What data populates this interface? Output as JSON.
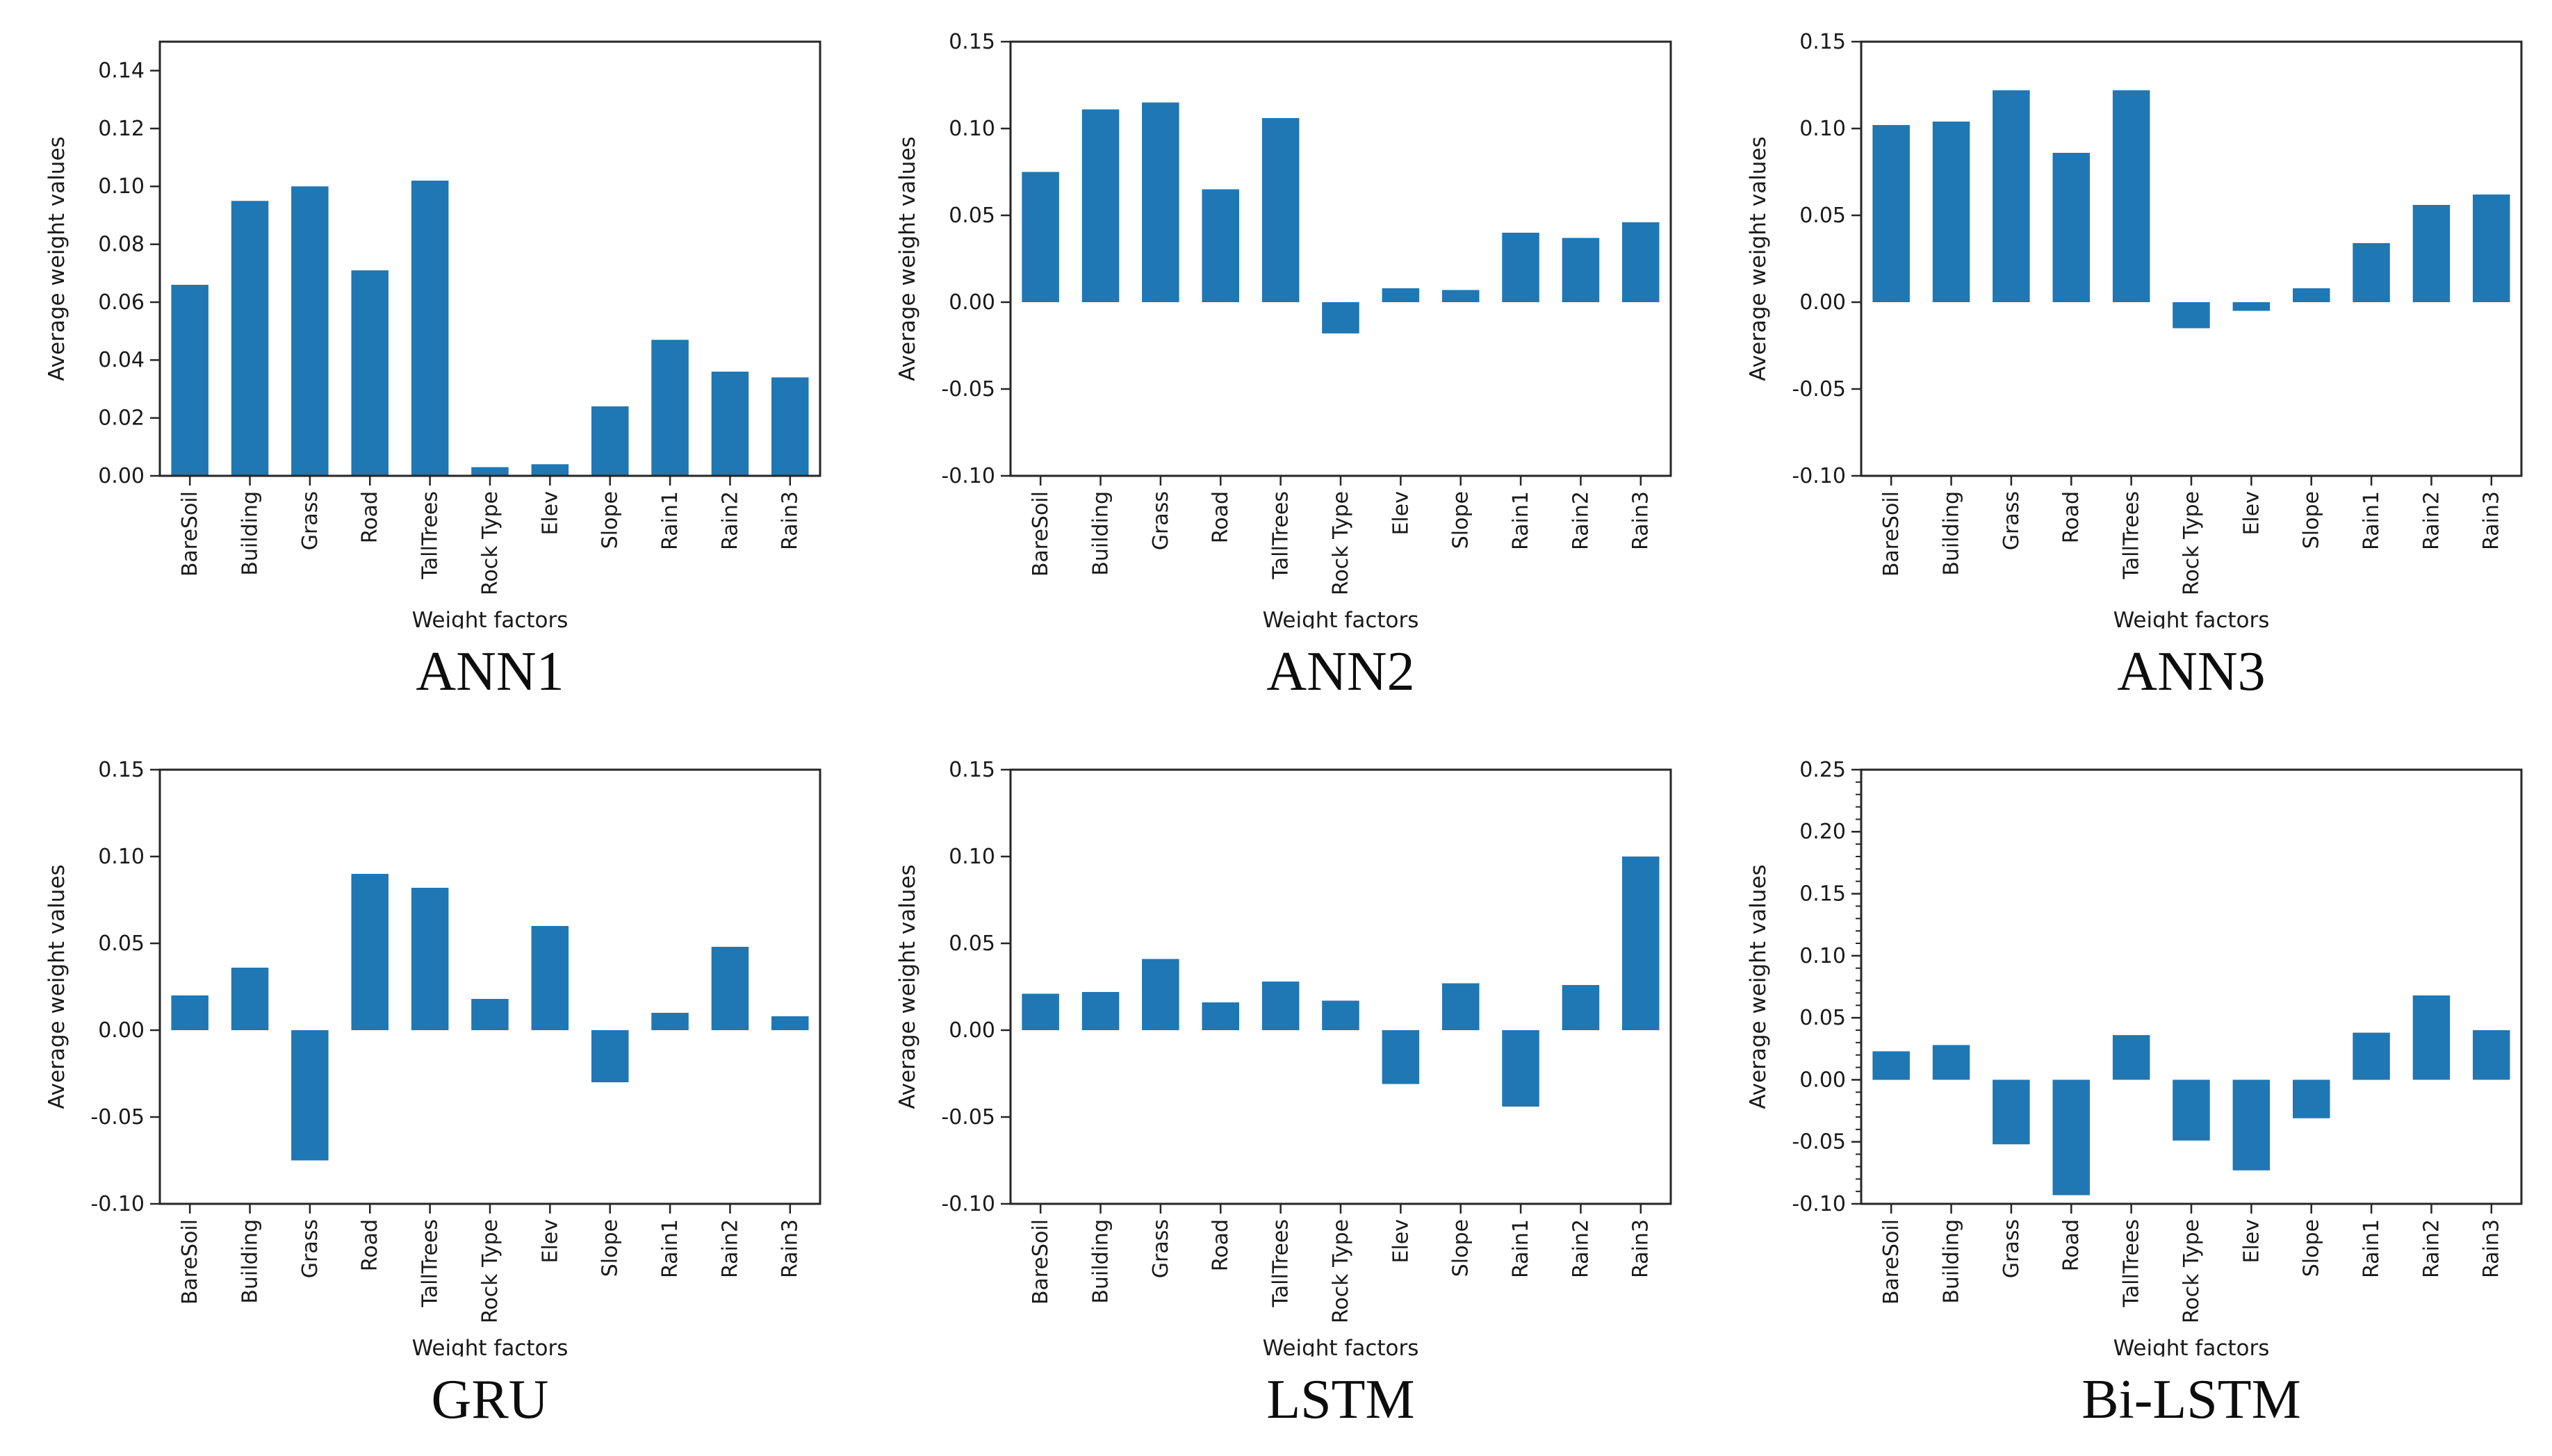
{
  "figure": {
    "background_color": "#ffffff",
    "bar_color": "#1f77b4",
    "axis_color": "#262626",
    "text_color": "#1a1a1a",
    "ylabel": "Average weight values",
    "xlabel": "Weight factors"
  },
  "categories": [
    "BareSoil",
    "Building",
    "Grass",
    "Road",
    "TallTrees",
    "Rock Type",
    "Elev",
    "Slope",
    "Rain1",
    "Rain2",
    "Rain3"
  ],
  "chart_data": [
    {
      "type": "bar",
      "title": "ANN1",
      "xlabel": "Weight factors",
      "ylabel": "Average weight values",
      "categories": [
        "BareSoil",
        "Building",
        "Grass",
        "Road",
        "TallTrees",
        "Rock Type",
        "Elev",
        "Slope",
        "Rain1",
        "Rain2",
        "Rain3"
      ],
      "values": [
        0.066,
        0.095,
        0.1,
        0.071,
        0.102,
        0.003,
        0.004,
        0.024,
        0.047,
        0.036,
        0.034
      ],
      "ylim": [
        0.0,
        0.15
      ],
      "yticks": [
        0.0,
        0.02,
        0.04,
        0.06,
        0.08,
        0.1,
        0.12,
        0.14
      ],
      "ytick_labels": [
        "0.00",
        "0.02",
        "0.04",
        "0.06",
        "0.08",
        "0.10",
        "0.12",
        "0.14"
      ],
      "yminor_step": 0,
      "grid": false,
      "legend": null
    },
    {
      "type": "bar",
      "title": "ANN2",
      "xlabel": "Weight factors",
      "ylabel": "Average weight values",
      "categories": [
        "BareSoil",
        "Building",
        "Grass",
        "Road",
        "TallTrees",
        "Rock Type",
        "Elev",
        "Slope",
        "Rain1",
        "Rain2",
        "Rain3"
      ],
      "values": [
        0.075,
        0.111,
        0.115,
        0.065,
        0.106,
        -0.018,
        0.008,
        0.007,
        0.04,
        0.037,
        0.046
      ],
      "ylim": [
        -0.1,
        0.15
      ],
      "yticks": [
        -0.1,
        -0.05,
        0.0,
        0.05,
        0.1,
        0.15
      ],
      "ytick_labels": [
        "-0.10",
        "-0.05",
        "0.00",
        "0.05",
        "0.10",
        "0.15"
      ],
      "yminor_step": 0,
      "grid": false,
      "legend": null
    },
    {
      "type": "bar",
      "title": "ANN3",
      "xlabel": "Weight factors",
      "ylabel": "Average weight values",
      "categories": [
        "BareSoil",
        "Building",
        "Grass",
        "Road",
        "TallTrees",
        "Rock Type",
        "Elev",
        "Slope",
        "Rain1",
        "Rain2",
        "Rain3"
      ],
      "values": [
        0.102,
        0.104,
        0.122,
        0.086,
        0.122,
        -0.015,
        -0.005,
        0.008,
        0.034,
        0.056,
        0.062
      ],
      "ylim": [
        -0.1,
        0.15
      ],
      "yticks": [
        -0.1,
        -0.05,
        0.0,
        0.05,
        0.1,
        0.15
      ],
      "ytick_labels": [
        "-0.10",
        "-0.05",
        "0.00",
        "0.05",
        "0.10",
        "0.15"
      ],
      "yminor_step": 0,
      "grid": false,
      "legend": null
    },
    {
      "type": "bar",
      "title": "GRU",
      "xlabel": "Weight factors",
      "ylabel": "Average weight values",
      "categories": [
        "BareSoil",
        "Building",
        "Grass",
        "Road",
        "TallTrees",
        "Rock Type",
        "Elev",
        "Slope",
        "Rain1",
        "Rain2",
        "Rain3"
      ],
      "values": [
        0.02,
        0.036,
        -0.075,
        0.09,
        0.082,
        0.018,
        0.06,
        -0.03,
        0.01,
        0.048,
        0.008
      ],
      "ylim": [
        -0.1,
        0.15
      ],
      "yticks": [
        -0.1,
        -0.05,
        0.0,
        0.05,
        0.1,
        0.15
      ],
      "ytick_labels": [
        "-0.10",
        "-0.05",
        "0.00",
        "0.05",
        "0.10",
        "0.15"
      ],
      "yminor_step": 0,
      "grid": false,
      "legend": null
    },
    {
      "type": "bar",
      "title": "LSTM",
      "xlabel": "Weight factors",
      "ylabel": "Average weight values",
      "categories": [
        "BareSoil",
        "Building",
        "Grass",
        "Road",
        "TallTrees",
        "Rock Type",
        "Elev",
        "Slope",
        "Rain1",
        "Rain2",
        "Rain3"
      ],
      "values": [
        0.021,
        0.022,
        0.041,
        0.016,
        0.028,
        0.017,
        -0.031,
        0.027,
        -0.044,
        0.026,
        0.1
      ],
      "ylim": [
        -0.1,
        0.15
      ],
      "yticks": [
        -0.1,
        -0.05,
        0.0,
        0.05,
        0.1,
        0.15
      ],
      "ytick_labels": [
        "-0.10",
        "-0.05",
        "0.00",
        "0.05",
        "0.10",
        "0.15"
      ],
      "yminor_step": 0,
      "grid": false,
      "legend": null
    },
    {
      "type": "bar",
      "title": "Bi-LSTM",
      "xlabel": "Weight factors",
      "ylabel": "Average weight values",
      "categories": [
        "BareSoil",
        "Building",
        "Grass",
        "Road",
        "TallTrees",
        "Rock Type",
        "Elev",
        "Slope",
        "Rain1",
        "Rain2",
        "Rain3"
      ],
      "values": [
        0.023,
        0.028,
        -0.052,
        -0.093,
        0.036,
        -0.049,
        -0.073,
        -0.031,
        0.038,
        0.068,
        0.04
      ],
      "ylim": [
        -0.1,
        0.25
      ],
      "yticks": [
        -0.1,
        -0.05,
        0.0,
        0.05,
        0.1,
        0.15,
        0.2,
        0.25
      ],
      "ytick_labels": [
        "-0.10",
        "-0.05",
        "0.00",
        "0.05",
        "0.10",
        "0.15",
        "0.20",
        "0.25"
      ],
      "yminor_step": 0.01,
      "grid": false,
      "legend": null
    }
  ]
}
